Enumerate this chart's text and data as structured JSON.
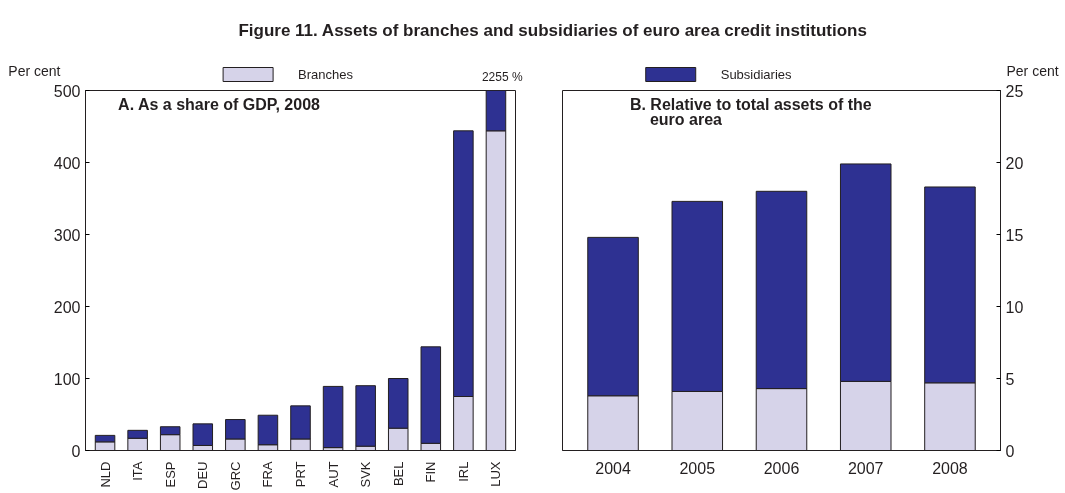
{
  "chart_data": [
    {
      "type": "bar",
      "title": "Figure 11. Assets of branches and subsidiaries of euro area credit institutions",
      "subtitle": "A. As a share of GDP, 2008",
      "ylabel": "Per cent",
      "stacked": true,
      "categories": [
        "NLD",
        "ITA",
        "ESP",
        "DEU",
        "GRC",
        "FRA",
        "PRT",
        "AUT",
        "SVK",
        "BEL",
        "FIN",
        "IRL",
        "LUX"
      ],
      "series": [
        {
          "name": "Branches",
          "color": "#d6d3e9",
          "values": [
            12,
            17,
            22,
            7,
            16,
            8,
            16,
            4,
            6,
            31,
            10,
            75,
            444
          ]
        },
        {
          "color": "#2e3192",
          "values": [
            9,
            11,
            11,
            30,
            27,
            41,
            46,
            85,
            84,
            69,
            134,
            369,
            56
          ]
        }
      ],
      "ylim": [
        0,
        500
      ],
      "yticks": [
        0,
        100,
        200,
        300,
        400,
        500
      ],
      "grid": false,
      "legend": "top",
      "annotations": [
        {
          "text": "2255 %",
          "x": "LUX",
          "y": 500
        }
      ]
    },
    {
      "type": "bar",
      "subtitle": "B. Relative to total assets of the\neuro area",
      "y2label": "Per cent",
      "stacked": true,
      "categories": [
        "2004",
        "2005",
        "2006",
        "2007",
        "2008"
      ],
      "series": [
        {
          "color": "#d6d3e9",
          "values": [
            3.8,
            4.1,
            4.3,
            4.8,
            4.7
          ],
          "axis": "y2"
        },
        {
          "name": "Subsidiaries",
          "color": "#2e3192",
          "values": [
            11.0,
            13.2,
            13.7,
            15.1,
            13.6
          ],
          "axis": "y2"
        }
      ],
      "y2lim": [
        0,
        25
      ],
      "y2ticks": [
        0,
        5,
        10,
        15,
        20,
        25
      ],
      "grid": false,
      "legend": "top"
    }
  ]
}
